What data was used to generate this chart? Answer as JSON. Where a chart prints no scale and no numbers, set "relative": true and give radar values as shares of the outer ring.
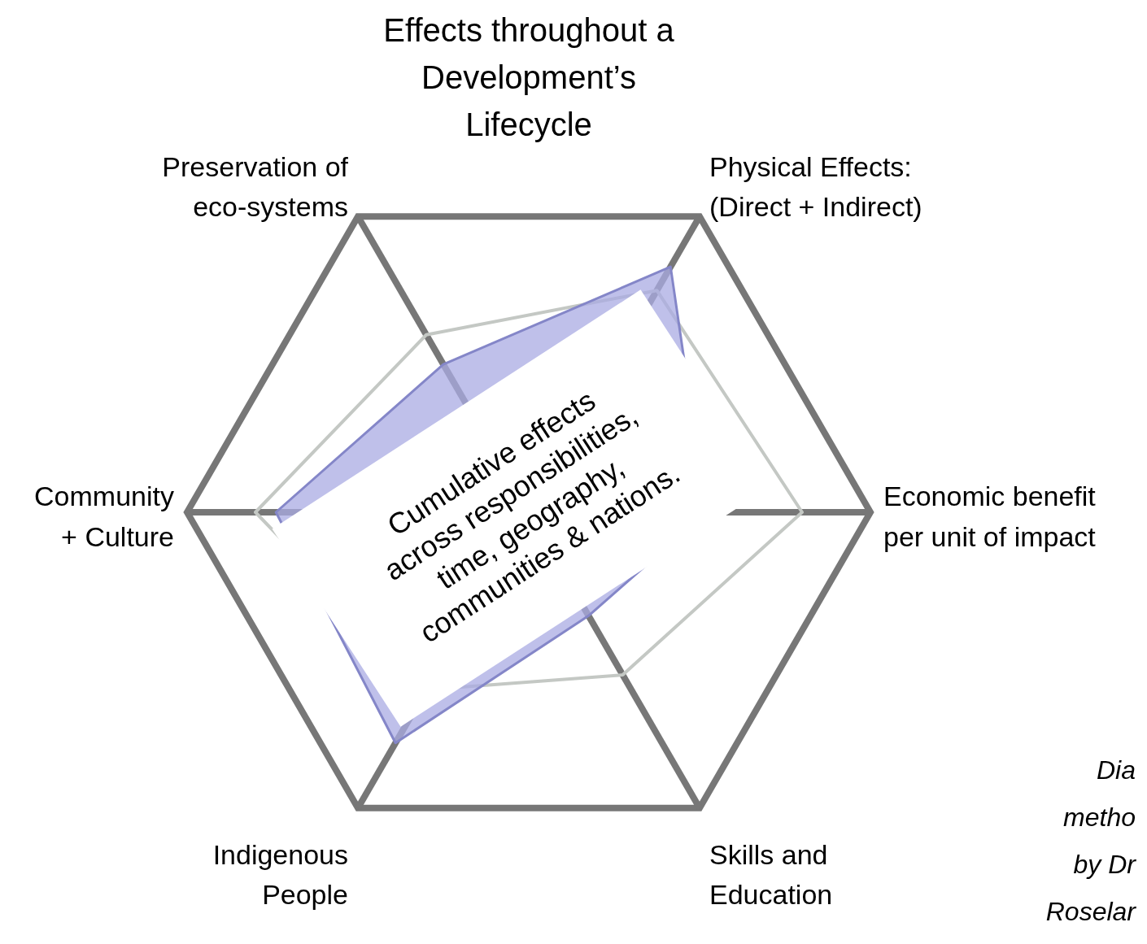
{
  "chart_data": {
    "type": "radar",
    "relative": true,
    "title": "Effects throughout a Development’s Lifecycle",
    "categories": [
      "Preservation of\neco-systems",
      "Physical Effects:\n(Direct + Indirect)",
      "Economic benefit\nper unit of impact",
      "Skills and\nEducation",
      "Indigenous\nPeople",
      "Community\n+ Culture"
    ],
    "series": [
      {
        "color": "#c4c8c4",
        "values": [
          0.6,
          0.75,
          0.8,
          0.55,
          0.6,
          0.8
        ]
      },
      {
        "color": "#a9abe3",
        "values": [
          0.5,
          0.83,
          0.52,
          0.35,
          0.78,
          0.74
        ]
      }
    ],
    "grid": true,
    "annotations": [
      "Cumulative effects\nacross responsibilities,\ntime, geography,\ncommunities & nations.",
      "Dia\nmetho\nby Dr\nRoselar"
    ]
  }
}
